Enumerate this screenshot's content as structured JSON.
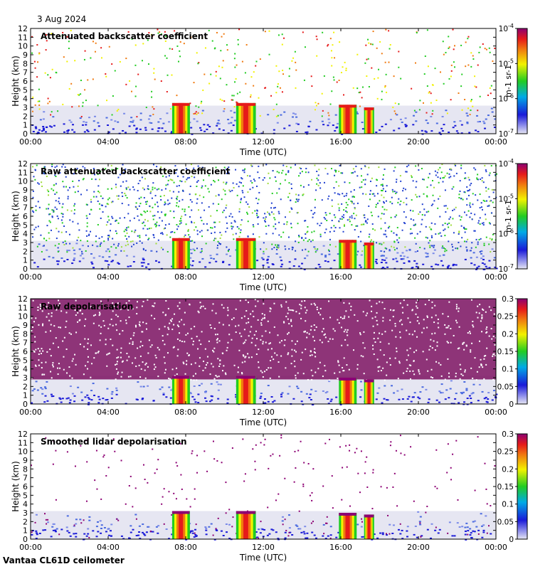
{
  "header": {
    "date": "3 Aug 2024"
  },
  "footer": {
    "instrument": "Vantaa CL61D ceilometer"
  },
  "colors": {
    "background_gray": "#e6e6f2",
    "deep_blue": "#1a1ad8",
    "green": "#22cc22",
    "yellow": "#f2f200",
    "red": "#e61a1a",
    "magenta": "#8c0073",
    "orange": "#f07a10"
  },
  "chart_data": [
    {
      "type": "heatmap",
      "title": "Attenuated backscatter coefficient",
      "xlabel": "Time (UTC)",
      "ylabel": "Height (km)",
      "x_ticks": [
        "00:00",
        "04:00",
        "08:00",
        "12:00",
        "16:00",
        "20:00",
        "00:00"
      ],
      "y_ticks": [
        "0",
        "1",
        "2",
        "3",
        "4",
        "5",
        "6",
        "7",
        "8",
        "9",
        "10",
        "11",
        "12"
      ],
      "xlim": [
        0,
        24
      ],
      "ylim": [
        0,
        12
      ],
      "colorbar": {
        "scale": "log",
        "range": [
          1e-07,
          0.0001
        ],
        "ticks": [
          "10-7",
          "10-6",
          "10-5",
          "10-4"
        ],
        "label": "m-1 sr-1",
        "palette": "rainbow"
      },
      "cloud_features_hours_km": [
        [
          7.3,
          8.2,
          0,
          3.5
        ],
        [
          10.6,
          11.6,
          0,
          3.5
        ],
        [
          15.9,
          16.8,
          0,
          3.3
        ],
        [
          17.2,
          17.7,
          0,
          3.0
        ]
      ],
      "noise": "sparse"
    },
    {
      "type": "heatmap",
      "title": "Raw attenuated backscatter coefficient",
      "xlabel": "Time (UTC)",
      "ylabel": "Height (km)",
      "x_ticks": [
        "00:00",
        "04:00",
        "08:00",
        "12:00",
        "16:00",
        "20:00",
        "00:00"
      ],
      "y_ticks": [
        "0",
        "1",
        "2",
        "3",
        "4",
        "5",
        "6",
        "7",
        "8",
        "9",
        "10",
        "11",
        "12"
      ],
      "xlim": [
        0,
        24
      ],
      "ylim": [
        0,
        12
      ],
      "colorbar": {
        "scale": "log",
        "range": [
          1e-07,
          0.0001
        ],
        "ticks": [
          "10-7",
          "10-6",
          "10-5",
          "10-4"
        ],
        "label": "m-1 sr-1",
        "palette": "rainbow"
      },
      "cloud_features_hours_km": [
        [
          7.3,
          8.2,
          0,
          3.5
        ],
        [
          10.6,
          11.6,
          0,
          3.5
        ],
        [
          15.9,
          16.8,
          0,
          3.3
        ],
        [
          17.2,
          17.7,
          0,
          3.0
        ]
      ],
      "noise": "dense-blue-green"
    },
    {
      "type": "heatmap",
      "title": "Raw depolarisation",
      "xlabel": "Time (UTC)",
      "ylabel": "Height (km)",
      "x_ticks": [
        "00:00",
        "04:00",
        "08:00",
        "12:00",
        "16:00",
        "20:00",
        "00:00"
      ],
      "y_ticks": [
        "0",
        "1",
        "2",
        "3",
        "4",
        "5",
        "6",
        "7",
        "8",
        "9",
        "10",
        "11",
        "12"
      ],
      "xlim": [
        0,
        24
      ],
      "ylim": [
        0,
        12
      ],
      "colorbar": {
        "scale": "linear",
        "range": [
          0,
          0.3
        ],
        "ticks": [
          "0",
          "0.05",
          "0.1",
          "0.15",
          "0.2",
          "0.25",
          "0.3"
        ],
        "label": "",
        "palette": "rainbow"
      },
      "cloud_features_hours_km": [
        [
          7.3,
          8.2,
          0,
          3.2
        ],
        [
          10.6,
          11.6,
          0,
          3.2
        ],
        [
          15.9,
          16.8,
          0,
          3.0
        ],
        [
          17.2,
          17.7,
          0,
          2.8
        ]
      ],
      "noise": "dense-magenta"
    },
    {
      "type": "heatmap",
      "title": "Smoothed lidar depolarisation",
      "xlabel": "Time (UTC)",
      "ylabel": "Height (km)",
      "x_ticks": [
        "00:00",
        "04:00",
        "08:00",
        "12:00",
        "16:00",
        "20:00",
        "00:00"
      ],
      "y_ticks": [
        "0",
        "1",
        "2",
        "3",
        "4",
        "5",
        "6",
        "7",
        "8",
        "9",
        "10",
        "11",
        "12"
      ],
      "xlim": [
        0,
        24
      ],
      "ylim": [
        0,
        12
      ],
      "colorbar": {
        "scale": "linear",
        "range": [
          0,
          0.3
        ],
        "ticks": [
          "0",
          "0.05",
          "0.1",
          "0.15",
          "0.2",
          "0.25",
          "0.3"
        ],
        "label": "",
        "palette": "rainbow"
      },
      "cloud_features_hours_km": [
        [
          7.3,
          8.2,
          0,
          3.2
        ],
        [
          10.6,
          11.6,
          0,
          3.2
        ],
        [
          15.9,
          16.8,
          0,
          3.0
        ],
        [
          17.2,
          17.7,
          0,
          2.8
        ]
      ],
      "noise": "sparse-magenta"
    }
  ]
}
